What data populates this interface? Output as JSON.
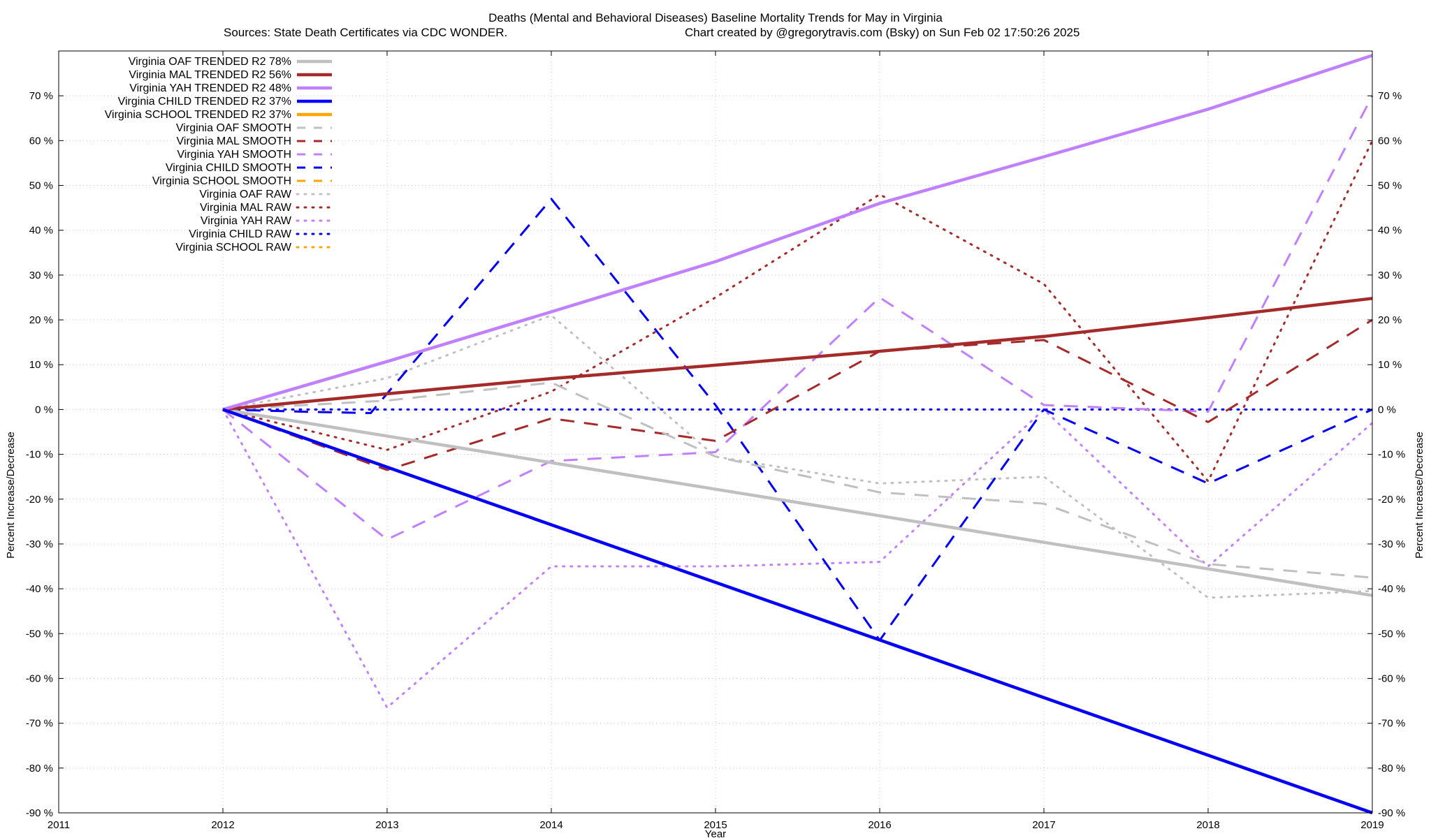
{
  "chart_data": {
    "type": "line",
    "title": "Deaths (Mental and Behavioral Diseases)  Baseline Mortality Trends for May in Virginia",
    "subtitle_left": "Sources: State Death Certificates via CDC WONDER.",
    "subtitle_right": "Chart created by @gregorytravis.com (Bsky) on Sun Feb 02 17:50:26 2025",
    "xlabel": "Year",
    "ylabel": "Percent Increase/Decrease",
    "y2label": "Percent Increase/Decrease",
    "xlim": [
      2011,
      2019
    ],
    "ylim": [
      -90,
      80
    ],
    "xticks": [
      2011,
      2012,
      2013,
      2014,
      2015,
      2016,
      2017,
      2018,
      2019
    ],
    "yticks": [
      -90,
      -80,
      -70,
      -60,
      -50,
      -40,
      -30,
      -20,
      -10,
      0,
      10,
      20,
      30,
      40,
      50,
      60,
      70
    ],
    "ytick_suffix": " %",
    "grid": true,
    "legend_position": "top-left",
    "series": [
      {
        "name": "Virginia OAF TRENDED R2  78%",
        "style": "solid",
        "color": "#c0c0c0",
        "x": [
          2012,
          2019
        ],
        "values": [
          0,
          -41.5
        ]
      },
      {
        "name": "Virginia MAL TRENDED R2  56%",
        "style": "solid",
        "color": "#a52a2a",
        "x": [
          2012,
          2013,
          2014,
          2015,
          2016,
          2017,
          2018,
          2019
        ],
        "values": [
          0,
          3.5,
          6.9,
          9.9,
          13,
          16.3,
          20.5,
          24.8
        ]
      },
      {
        "name": "Virginia YAH TRENDED R2  48%",
        "style": "solid",
        "color": "#c080ff",
        "x": [
          2012,
          2013,
          2014,
          2015,
          2016,
          2017,
          2018,
          2019
        ],
        "values": [
          0,
          10.7,
          21.8,
          33,
          46,
          56.4,
          67,
          79
        ]
      },
      {
        "name": "Virginia CHILD TRENDED R2  37%",
        "style": "solid",
        "color": "#0000ff",
        "x": [
          2012,
          2019
        ],
        "values": [
          0,
          -90
        ]
      },
      {
        "name": "Virginia SCHOOL TRENDED R2  37%",
        "style": "solid",
        "color": "#ffa500",
        "x": [
          2012,
          2019
        ],
        "values": [
          0,
          -90
        ]
      },
      {
        "name": "Virginia OAF SMOOTH",
        "style": "dashed",
        "color": "#c0c0c0",
        "x": [
          2012,
          2013,
          2014,
          2015,
          2016,
          2017,
          2018,
          2019
        ],
        "values": [
          0,
          2,
          6,
          -10.5,
          -18.5,
          -21,
          -34.5,
          -37.5
        ]
      },
      {
        "name": "Virginia MAL SMOOTH",
        "style": "dashed",
        "color": "#a52a2a",
        "x": [
          2012,
          2013,
          2014,
          2015,
          2016,
          2017,
          2018,
          2019
        ],
        "values": [
          0,
          -13.5,
          -2,
          -7,
          13,
          15.5,
          -2.8,
          20
        ]
      },
      {
        "name": "Virginia YAH SMOOTH",
        "style": "dashed",
        "color": "#c080ff",
        "x": [
          2012,
          2013,
          2014,
          2015,
          2016,
          2017,
          2018,
          2019
        ],
        "values": [
          0,
          -29,
          -11.5,
          -9.5,
          25,
          1,
          -0.5,
          70
        ]
      },
      {
        "name": "Virginia CHILD SMOOTH",
        "style": "dashed",
        "color": "#0000ff",
        "x": [
          2012,
          2012.5,
          2012.9,
          2014,
          2015,
          2016,
          2017,
          2018,
          2019
        ],
        "values": [
          0,
          -0.5,
          -0.8,
          47,
          1,
          -51.5,
          0,
          -16.5,
          0
        ]
      },
      {
        "name": "Virginia SCHOOL SMOOTH",
        "style": "dashed",
        "color": "#ffa500",
        "x": [
          2012,
          2012.5,
          2012.9,
          2014,
          2015,
          2016,
          2017,
          2018,
          2019
        ],
        "values": [
          0,
          -0.5,
          -0.8,
          47,
          1,
          -51.5,
          0,
          -16.5,
          0
        ]
      },
      {
        "name": "Virginia OAF RAW",
        "style": "dotted",
        "color": "#c0c0c0",
        "x": [
          2012,
          2013,
          2014,
          2015,
          2016,
          2017,
          2018,
          2019
        ],
        "values": [
          0,
          7,
          21,
          -10.5,
          -16.5,
          -15,
          -42,
          -40.5
        ]
      },
      {
        "name": "Virginia MAL RAW",
        "style": "dotted",
        "color": "#a52a2a",
        "x": [
          2012,
          2013,
          2014,
          2015,
          2016,
          2017,
          2018,
          2019
        ],
        "values": [
          0,
          -9,
          4,
          25,
          48,
          28,
          -16,
          60
        ]
      },
      {
        "name": "Virginia YAH RAW",
        "style": "dotted",
        "color": "#c080ff",
        "x": [
          2012,
          2013,
          2014,
          2015,
          2016,
          2017,
          2018,
          2019
        ],
        "values": [
          0,
          -66.5,
          -35,
          -35,
          -34,
          0,
          -35,
          -3
        ]
      },
      {
        "name": "Virginia CHILD RAW",
        "style": "dotted",
        "color": "#0000ff",
        "x": [
          2012,
          2019
        ],
        "values": [
          0,
          0
        ]
      },
      {
        "name": "Virginia SCHOOL RAW",
        "style": "dotted",
        "color": "#ffa500",
        "x": [
          2012,
          2019
        ],
        "values": [
          0,
          0
        ]
      }
    ]
  }
}
